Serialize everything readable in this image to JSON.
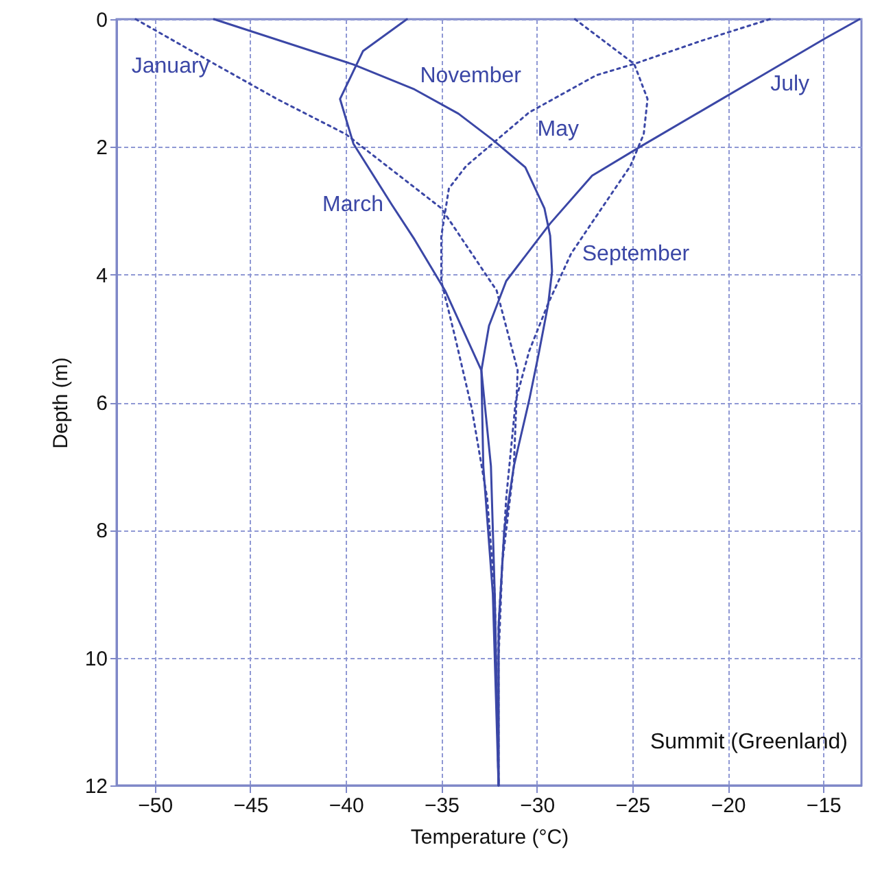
{
  "chart_data": {
    "type": "line",
    "xlabel": "Temperature (°C)",
    "ylabel": "Depth (m)",
    "xlim": [
      -52,
      -13
    ],
    "xticks": [
      -50,
      -45,
      -40,
      -35,
      -30,
      -25,
      -20,
      -15
    ],
    "ylim": [
      12,
      0
    ],
    "yticks": [
      0,
      2,
      4,
      6,
      8,
      10,
      12
    ],
    "grid": true,
    "series": [
      {
        "name": "January",
        "color": "#3b47a6",
        "line_style": "dotted",
        "x": [
          -51,
          -46.7,
          -43.6,
          -40,
          -35,
          -32.1,
          -31,
          -31.2,
          -31.8,
          -32,
          -32
        ],
        "values": [
          0,
          0.73,
          1.25,
          1.8,
          2.96,
          4.25,
          5.5,
          7,
          8.5,
          10,
          12
        ]
      },
      {
        "name": "March",
        "color": "#3b47a6",
        "line_style": "solid",
        "x": [
          -36.8,
          -39.1,
          -40.3,
          -39.6,
          -37.6,
          -36.4,
          -34.8,
          -32.9,
          -32.4,
          -32.2,
          -32
        ],
        "values": [
          0,
          0.5,
          1.25,
          1.95,
          2.9,
          3.45,
          4.25,
          5.5,
          7,
          9,
          12
        ]
      },
      {
        "name": "May",
        "color": "#3b47a6",
        "line_style": "dotted",
        "x": [
          -17.8,
          -21.4,
          -24.9,
          -26.9,
          -30.4,
          -33.7,
          -34.6,
          -35,
          -35,
          -34.3,
          -33.4,
          -32.6,
          -32.2,
          -32
        ],
        "values": [
          0,
          0.34,
          0.7,
          0.88,
          1.46,
          2.3,
          2.65,
          3.4,
          4.1,
          4.95,
          6.1,
          7.5,
          9,
          12
        ]
      },
      {
        "name": "July",
        "color": "#3b47a6",
        "line_style": "solid",
        "x": [
          -13.1,
          -14.9,
          -18.2,
          -20.6,
          -24.6,
          -27.1,
          -29.3,
          -31.6,
          -32.5,
          -32.9,
          -32.8,
          -32.3,
          -32
        ],
        "values": [
          0,
          0.3,
          0.88,
          1.3,
          2.0,
          2.45,
          3.2,
          4.1,
          4.8,
          5.5,
          7,
          9,
          12
        ]
      },
      {
        "name": "September",
        "color": "#3b47a6",
        "line_style": "dotted",
        "x": [
          -28,
          -24.9,
          -24.2,
          -24.4,
          -25.1,
          -26.6,
          -28.2,
          -29.4,
          -30.4,
          -31.1,
          -31.6,
          -32,
          -32
        ],
        "values": [
          0,
          0.7,
          1.25,
          1.8,
          2.3,
          2.96,
          3.67,
          4.45,
          5.2,
          5.97,
          7.5,
          9.5,
          12
        ]
      },
      {
        "name": "November",
        "color": "#3b47a6",
        "line_style": "solid",
        "x": [
          -46.9,
          -39.6,
          -36.4,
          -34.1,
          -32.3,
          -30.6,
          -29.6,
          -29.3,
          -29.2,
          -29.4,
          -29.9,
          -30.4,
          -31.2,
          -31.7,
          -32,
          -32
        ],
        "values": [
          0,
          0.71,
          1.1,
          1.48,
          1.89,
          2.32,
          2.96,
          3.39,
          3.95,
          4.46,
          5.24,
          5.97,
          7,
          8,
          9.5,
          12
        ]
      }
    ],
    "annotations": [
      "Summit (Greenland)"
    ]
  }
}
